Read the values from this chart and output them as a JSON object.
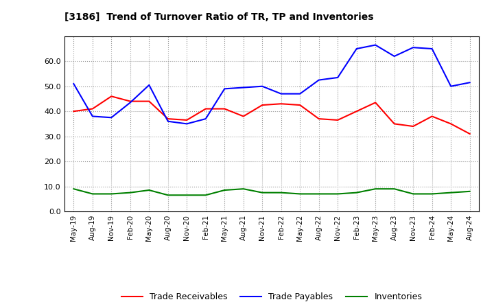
{
  "title": "[3186]  Trend of Turnover Ratio of TR, TP and Inventories",
  "labels": [
    "May-19",
    "Aug-19",
    "Nov-19",
    "Feb-20",
    "May-20",
    "Aug-20",
    "Nov-20",
    "Feb-21",
    "May-21",
    "Aug-21",
    "Nov-21",
    "Feb-22",
    "May-22",
    "Aug-22",
    "Nov-22",
    "Feb-23",
    "May-23",
    "Aug-23",
    "Nov-23",
    "Feb-24",
    "May-24",
    "Aug-24"
  ],
  "trade_receivables": [
    40.0,
    41.0,
    46.0,
    44.0,
    44.0,
    37.0,
    36.5,
    41.0,
    41.0,
    38.0,
    42.5,
    43.0,
    42.5,
    37.0,
    36.5,
    40.0,
    43.5,
    35.0,
    34.0,
    38.0,
    35.0,
    31.0
  ],
  "trade_payables": [
    51.0,
    38.0,
    37.5,
    43.5,
    50.5,
    36.0,
    35.0,
    37.0,
    49.0,
    49.5,
    50.0,
    47.0,
    47.0,
    52.5,
    53.5,
    65.0,
    66.5,
    62.0,
    65.5,
    65.0,
    50.0,
    51.5
  ],
  "inventories": [
    9.0,
    7.0,
    7.0,
    7.5,
    8.5,
    6.5,
    6.5,
    6.5,
    8.5,
    9.0,
    7.5,
    7.5,
    7.0,
    7.0,
    7.0,
    7.5,
    9.0,
    9.0,
    7.0,
    7.0,
    7.5,
    8.0
  ],
  "ylim": [
    0.0,
    70.0
  ],
  "yticks": [
    0.0,
    10.0,
    20.0,
    30.0,
    40.0,
    50.0,
    60.0
  ],
  "color_tr": "#ff0000",
  "color_tp": "#0000ff",
  "color_inv": "#008000",
  "legend_tr": "Trade Receivables",
  "legend_tp": "Trade Payables",
  "legend_inv": "Inventories",
  "bg_color": "#ffffff",
  "grid_color": "#aaaaaa"
}
